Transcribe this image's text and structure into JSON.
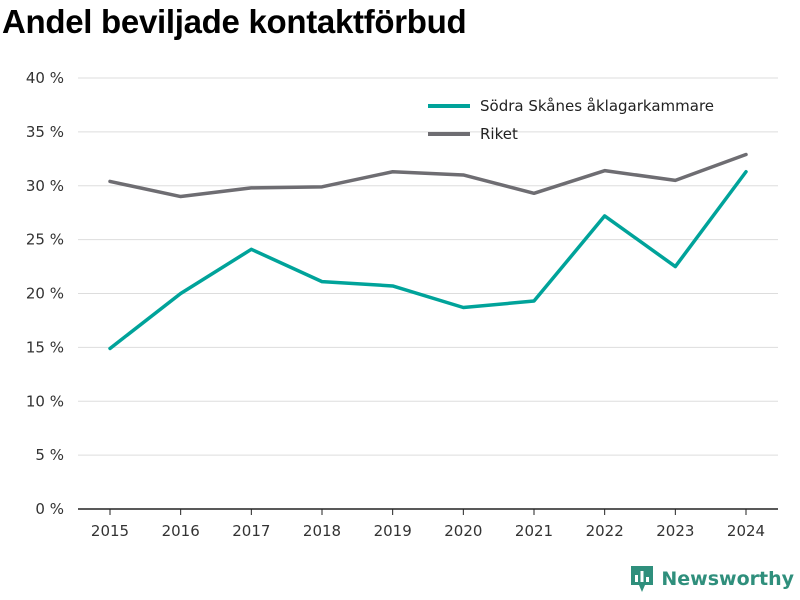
{
  "chart_data": {
    "type": "line",
    "title": "Andel beviljade kontaktförbud",
    "xlabel": "",
    "ylabel": "",
    "x": [
      2015,
      2016,
      2017,
      2018,
      2019,
      2020,
      2021,
      2022,
      2023,
      2024
    ],
    "ylim": [
      0,
      40
    ],
    "yticks": [
      0,
      5,
      10,
      15,
      20,
      25,
      30,
      35,
      40
    ],
    "ytick_labels": [
      "0 %",
      "5 %",
      "10 %",
      "15 %",
      "20 %",
      "25 %",
      "30 %",
      "35 %",
      "40 %"
    ],
    "grid": true,
    "legend_position": "top-right",
    "series": [
      {
        "name": "Södra Skånes åklagarkammare",
        "color": "#00a39a",
        "values": [
          14.9,
          20.0,
          24.1,
          21.1,
          20.7,
          18.7,
          19.3,
          27.2,
          22.5,
          31.3
        ]
      },
      {
        "name": "Riket",
        "color": "#6e6d72",
        "values": [
          30.4,
          29.0,
          29.8,
          29.9,
          31.3,
          31.0,
          29.3,
          31.4,
          30.5,
          32.9
        ]
      }
    ]
  },
  "brand": {
    "name": "Newsworthy",
    "color": "#2f8f7c"
  }
}
